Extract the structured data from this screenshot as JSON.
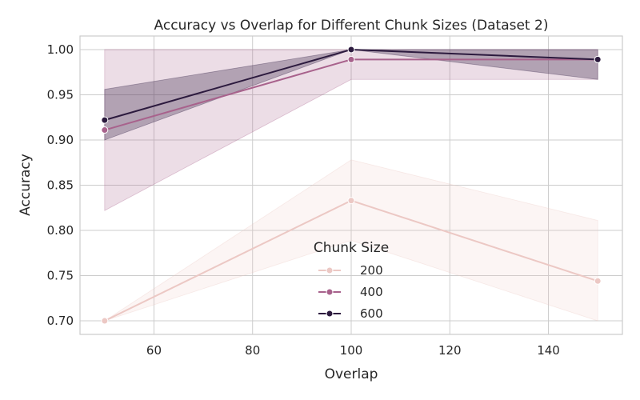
{
  "chart_data": {
    "type": "line",
    "title": "Accuracy vs Overlap for Different Chunk Sizes (Dataset 2)",
    "xlabel": "Overlap",
    "ylabel": "Accuracy",
    "xlim": [
      45,
      155
    ],
    "ylim": [
      0.685,
      1.015
    ],
    "xticks": [
      60,
      80,
      100,
      120,
      140
    ],
    "yticks": [
      0.7,
      0.75,
      0.8,
      0.85,
      0.9,
      0.95,
      1.0
    ],
    "ytick_labels": [
      "0.70",
      "0.75",
      "0.80",
      "0.85",
      "0.90",
      "0.95",
      "1.00"
    ],
    "grid": true,
    "legend": {
      "title": "Chunk Size",
      "placement": "lower-center"
    },
    "series": [
      {
        "name": "200",
        "color": "#ecc8c4",
        "x": [
          50,
          100,
          150
        ],
        "y": [
          0.7,
          0.833,
          0.744
        ],
        "ci_low": [
          0.7,
          0.789,
          0.7
        ],
        "ci_high": [
          0.7,
          0.878,
          0.811
        ]
      },
      {
        "name": "400",
        "color": "#a8628c",
        "x": [
          50,
          100,
          150
        ],
        "y": [
          0.911,
          0.989,
          0.989
        ],
        "ci_low": [
          0.822,
          0.967,
          0.967
        ],
        "ci_high": [
          1.0,
          1.0,
          1.0
        ]
      },
      {
        "name": "600",
        "color": "#2c1a3e",
        "x": [
          50,
          100,
          150
        ],
        "y": [
          0.922,
          1.0,
          0.989
        ],
        "ci_low": [
          0.9,
          1.0,
          0.967
        ],
        "ci_high": [
          0.956,
          1.0,
          1.0
        ]
      }
    ]
  }
}
